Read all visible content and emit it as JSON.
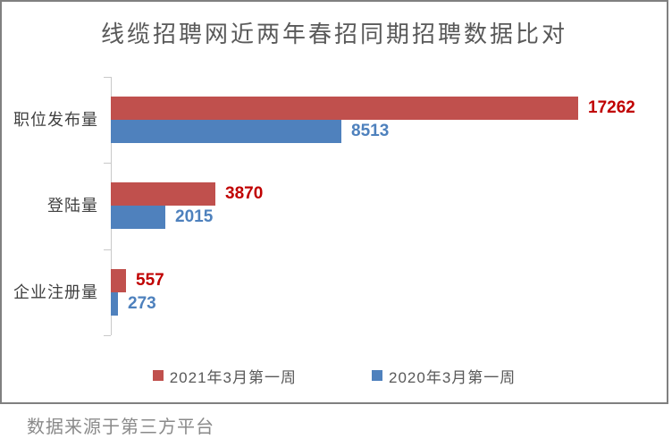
{
  "title": "线缆招聘网近两年春招同期招聘数据比对",
  "footer": "数据来源于第三方平台",
  "chart_data": {
    "type": "bar",
    "orientation": "horizontal",
    "title": "线缆招聘网近两年春招同期招聘数据比对",
    "categories": [
      "职位发布量",
      "登陆量",
      "企业注册量"
    ],
    "series": [
      {
        "name": "2021年3月第一周",
        "values": [
          17262,
          3870,
          557
        ],
        "color": "#c0504d",
        "label_color": "#c00000"
      },
      {
        "name": "2020年3月第一周",
        "values": [
          8513,
          2015,
          273
        ],
        "color": "#4f81bd",
        "label_color": "#4e81bd"
      }
    ],
    "xlim": [
      0,
      20000
    ],
    "value_labels": true,
    "grid": false,
    "legend_position": "bottom",
    "axis_color": "#c9c9c9"
  }
}
